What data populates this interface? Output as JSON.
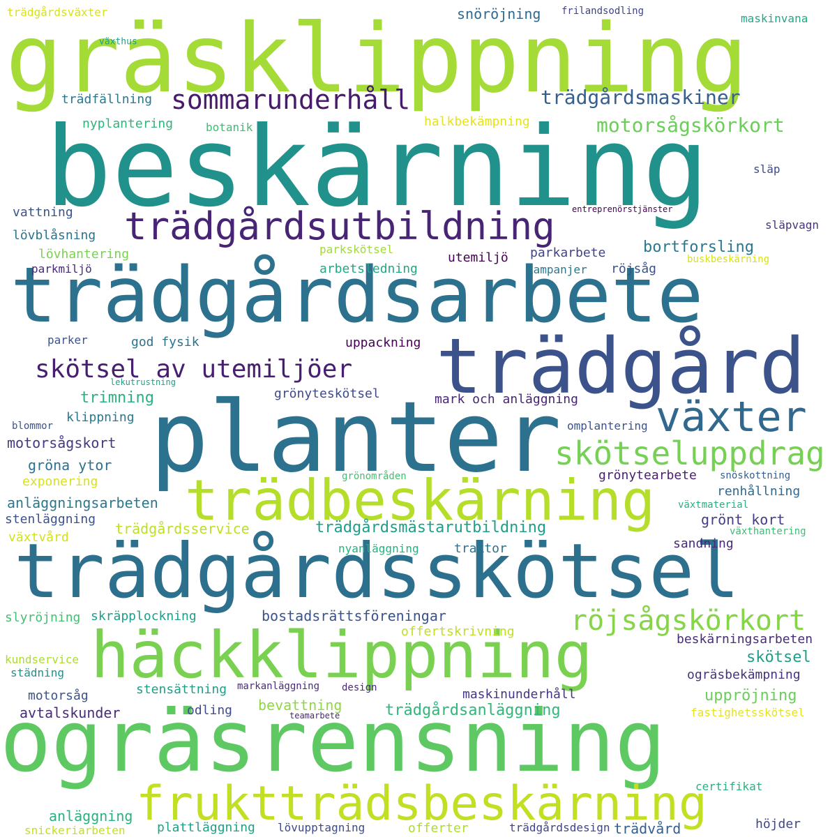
{
  "words": [
    {
      "text": "gräsklippning",
      "color": "#a5db36"
    },
    {
      "text": "beskärning",
      "color": "#21918c"
    },
    {
      "text": "trädgårdsutbildning",
      "color": "#482475"
    },
    {
      "text": "sommarunderhåll",
      "color": "#481a6c"
    },
    {
      "text": "trädgårdsmaskiner",
      "color": "#355f8d"
    },
    {
      "text": "motorsågskörkort",
      "color": "#6ccd5a"
    },
    {
      "text": "trädgårdsarbete",
      "color": "#2c718e"
    },
    {
      "text": "trädgård",
      "color": "#3b528b"
    },
    {
      "text": "skötsel av utemiljöer",
      "color": "#481f70"
    },
    {
      "text": "planter",
      "color": "#2c728e"
    },
    {
      "text": "växter",
      "color": "#31688e"
    },
    {
      "text": "skötseluppdrag",
      "color": "#75d054"
    },
    {
      "text": "trädbeskärning",
      "color": "#b5de2b"
    },
    {
      "text": "trädgårdsskötsel",
      "color": "#2d708e"
    },
    {
      "text": "häckklippning",
      "color": "#7ad151"
    },
    {
      "text": "röjsågskörkort",
      "color": "#86d549"
    },
    {
      "text": "ogräsrensning",
      "color": "#5ec962"
    },
    {
      "text": "fruktträdsbeskärning",
      "color": "#c2df23"
    },
    {
      "text": "trädgårdsväxter",
      "color": "#d8e219"
    },
    {
      "text": "snöröjning",
      "color": "#31688e"
    },
    {
      "text": "frilandsodling",
      "color": "#414487"
    },
    {
      "text": "maskinvana",
      "color": "#22a884"
    },
    {
      "text": "växthus",
      "color": "#1f9e89"
    },
    {
      "text": "trädfällning",
      "color": "#2a788e"
    },
    {
      "text": "nyplantering",
      "color": "#2fb47c"
    },
    {
      "text": "botanik",
      "color": "#3dbc74"
    },
    {
      "text": "halkbekämpning",
      "color": "#e5e419"
    },
    {
      "text": "släp",
      "color": "#3e4a89"
    },
    {
      "text": "vattning",
      "color": "#3b528b"
    },
    {
      "text": "entreprenörstjänster",
      "color": "#440154"
    },
    {
      "text": "lövblåsning",
      "color": "#2c728e"
    },
    {
      "text": "släpvagn",
      "color": "#46337e"
    },
    {
      "text": "lövhantering",
      "color": "#7ad151"
    },
    {
      "text": "parkskötsel",
      "color": "#a0da39"
    },
    {
      "text": "parkarbete",
      "color": "#414487"
    },
    {
      "text": "bortforsling",
      "color": "#2a788e"
    },
    {
      "text": "parkmiljö",
      "color": "#482878"
    },
    {
      "text": "arbetsledning",
      "color": "#22a884"
    },
    {
      "text": "utemiljö",
      "color": "#440154"
    },
    {
      "text": "kampanjer",
      "color": "#2a788e"
    },
    {
      "text": "röjsåg",
      "color": "#3b528b"
    },
    {
      "text": "buskbeskärning",
      "color": "#d8e219"
    },
    {
      "text": "parker",
      "color": "#3b528b"
    },
    {
      "text": "god fysik",
      "color": "#2c728e"
    },
    {
      "text": "uppackning",
      "color": "#440154"
    },
    {
      "text": "lekutrustning",
      "color": "#1fa088"
    },
    {
      "text": "trimning",
      "color": "#2ab07f"
    },
    {
      "text": "grönyteskötsel",
      "color": "#3e4a89"
    },
    {
      "text": "mark och anläggning",
      "color": "#482475"
    },
    {
      "text": "klippning",
      "color": "#2a788e"
    },
    {
      "text": "blommor",
      "color": "#3b528b"
    },
    {
      "text": "omplantering",
      "color": "#3b528b"
    },
    {
      "text": "motorsågskort",
      "color": "#443983"
    },
    {
      "text": "gröna ytor",
      "color": "#2c728e"
    },
    {
      "text": "exponering",
      "color": "#d8e219"
    },
    {
      "text": "grönområden",
      "color": "#44bf70"
    },
    {
      "text": "grönytearbete",
      "color": "#481f70"
    },
    {
      "text": "snöskottning",
      "color": "#355f8d"
    },
    {
      "text": "renhållning",
      "color": "#31688e"
    },
    {
      "text": "anläggningsarbeten",
      "color": "#2a788e"
    },
    {
      "text": "växtmaterial",
      "color": "#2ab07f"
    },
    {
      "text": "stenläggning",
      "color": "#3b528b"
    },
    {
      "text": "trädgårdsservice",
      "color": "#bddf26"
    },
    {
      "text": "trädgårdsmästarutbildning",
      "color": "#1f9e89"
    },
    {
      "text": "grönt kort",
      "color": "#433e85"
    },
    {
      "text": "växtvård",
      "color": "#d2e21b"
    },
    {
      "text": "växthantering",
      "color": "#3dbc74"
    },
    {
      "text": "nyanläggning",
      "color": "#2ab07f"
    },
    {
      "text": "traktor",
      "color": "#2c728e"
    },
    {
      "text": "sandning",
      "color": "#482878"
    },
    {
      "text": "slyröjning",
      "color": "#44bf70"
    },
    {
      "text": "skräpplockning",
      "color": "#1f9e89"
    },
    {
      "text": "bostadsrättsföreningar",
      "color": "#3b528b"
    },
    {
      "text": "offertskrivning",
      "color": "#bddf26"
    },
    {
      "text": "beskärningsarbeten",
      "color": "#472c7a"
    },
    {
      "text": "kundservice",
      "color": "#addc30"
    },
    {
      "text": "skötsel",
      "color": "#1f9e89"
    },
    {
      "text": "städning",
      "color": "#21918c"
    },
    {
      "text": "ogräsbekämpning",
      "color": "#46337e"
    },
    {
      "text": "stensättning",
      "color": "#1f9e89"
    },
    {
      "text": "markanläggning",
      "color": "#472c7a"
    },
    {
      "text": "design",
      "color": "#482878"
    },
    {
      "text": "motorsåg",
      "color": "#3b528b"
    },
    {
      "text": "bevattning",
      "color": "#8fd744"
    },
    {
      "text": "maskinunderhåll",
      "color": "#453781"
    },
    {
      "text": "uppröjning",
      "color": "#6ccd5a"
    },
    {
      "text": "avtalskunder",
      "color": "#472c7a"
    },
    {
      "text": "odling",
      "color": "#3e4a89"
    },
    {
      "text": "trädgårdsanläggning",
      "color": "#32b67a"
    },
    {
      "text": "teamarbete",
      "color": "#482878"
    },
    {
      "text": "fastighetsskötsel",
      "color": "#e5e419"
    },
    {
      "text": "certifikat",
      "color": "#2ab07f"
    },
    {
      "text": "anläggning",
      "color": "#2ab07f"
    },
    {
      "text": "höjder",
      "color": "#404688"
    },
    {
      "text": "snickeriarbeten",
      "color": "#c2df23"
    },
    {
      "text": "plattläggning",
      "color": "#1fa088"
    },
    {
      "text": "lövupptagning",
      "color": "#3e4a89"
    },
    {
      "text": "offerter",
      "color": "#addc30"
    },
    {
      "text": "trädgårdsdesign",
      "color": "#414487"
    },
    {
      "text": "trädvård",
      "color": "#355f8d"
    }
  ]
}
